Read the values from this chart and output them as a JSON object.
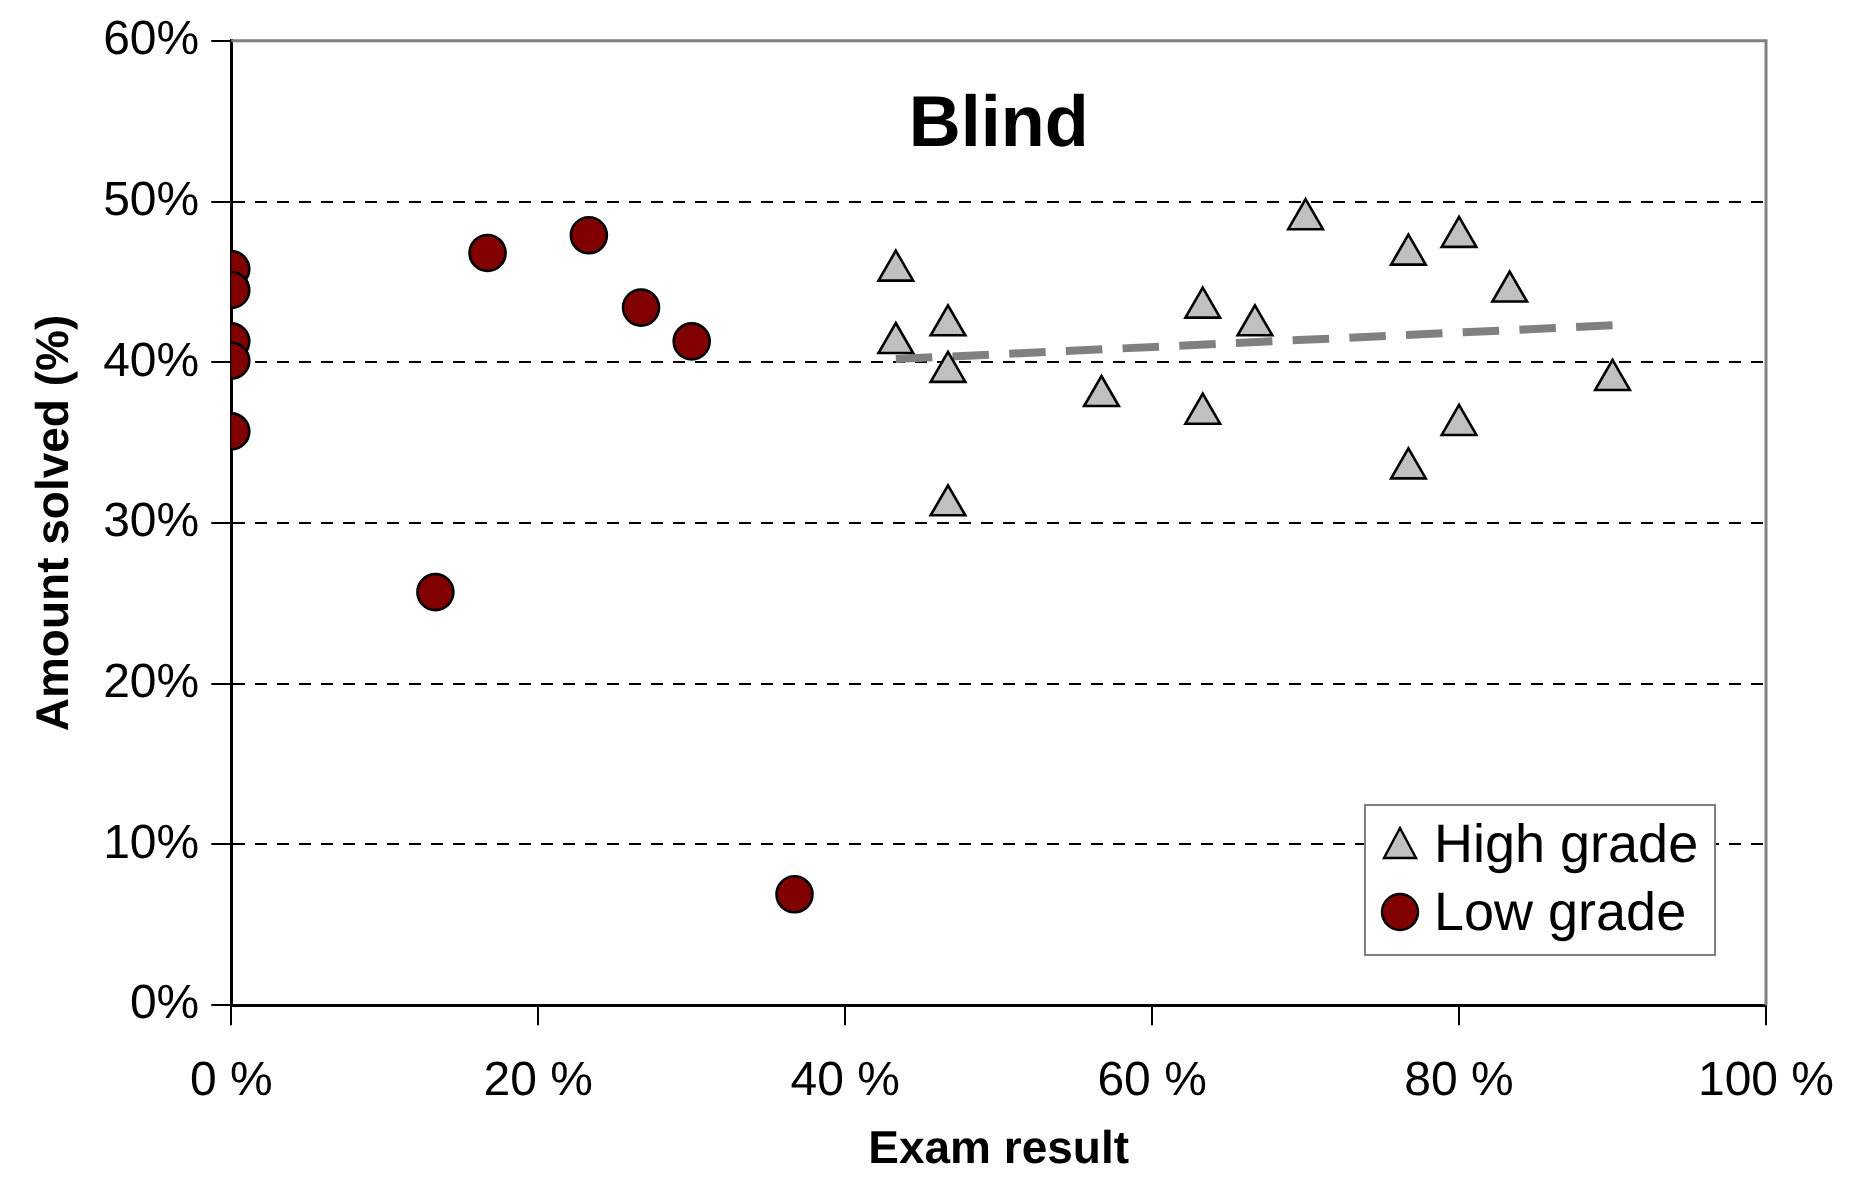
{
  "chart_data": {
    "type": "scatter",
    "title": "Blind",
    "xlabel": "Exam result",
    "ylabel": "Amount solved (%)",
    "xlim": [
      0,
      100
    ],
    "xticks": [
      {
        "value": 0,
        "label": "0 %"
      },
      {
        "value": 20,
        "label": "20 %"
      },
      {
        "value": 40,
        "label": "40 %"
      },
      {
        "value": 60,
        "label": "60 %"
      },
      {
        "value": 80,
        "label": "80 %"
      },
      {
        "value": 100,
        "label": "100 %"
      }
    ],
    "ylim": [
      0,
      60
    ],
    "yticks": [
      {
        "value": 0,
        "label": "0%"
      },
      {
        "value": 10,
        "label": "10%"
      },
      {
        "value": 20,
        "label": "20%"
      },
      {
        "value": 30,
        "label": "30%"
      },
      {
        "value": 40,
        "label": "40%"
      },
      {
        "value": 50,
        "label": "50%"
      },
      {
        "value": 60,
        "label": "60%"
      }
    ],
    "grid": "y",
    "legend": "bottom right",
    "series": [
      {
        "name": "High grade",
        "color": "#c0c0c0",
        "marker": "triangle",
        "x": [
          43.3,
          43.3,
          46.7,
          46.7,
          46.7,
          56.7,
          63.3,
          63.3,
          66.7,
          70,
          76.7,
          76.7,
          80,
          80,
          83.3,
          90
        ],
        "values": [
          45.7,
          41.2,
          42.3,
          39.4,
          31.1,
          37.9,
          43.4,
          36.8,
          42.3,
          48.9,
          46.7,
          33.4,
          47.8,
          36.1,
          44.4,
          38.9
        ]
      },
      {
        "name": "Low grade",
        "color": "#800000",
        "marker": "circle",
        "x": [
          0,
          0,
          0,
          0,
          0,
          13.3,
          16.7,
          23.3,
          26.7,
          30,
          36.7
        ],
        "values": [
          45.8,
          44.5,
          41.3,
          40.1,
          35.7,
          25.7,
          46.8,
          47.9,
          43.4,
          41.3,
          6.9
        ]
      },
      {
        "type": "line",
        "color": "#808080",
        "marker": "none",
        "line_style": "dashed",
        "x": [
          43.3,
          90
        ],
        "values": [
          40.2,
          42.3
        ]
      }
    ]
  }
}
